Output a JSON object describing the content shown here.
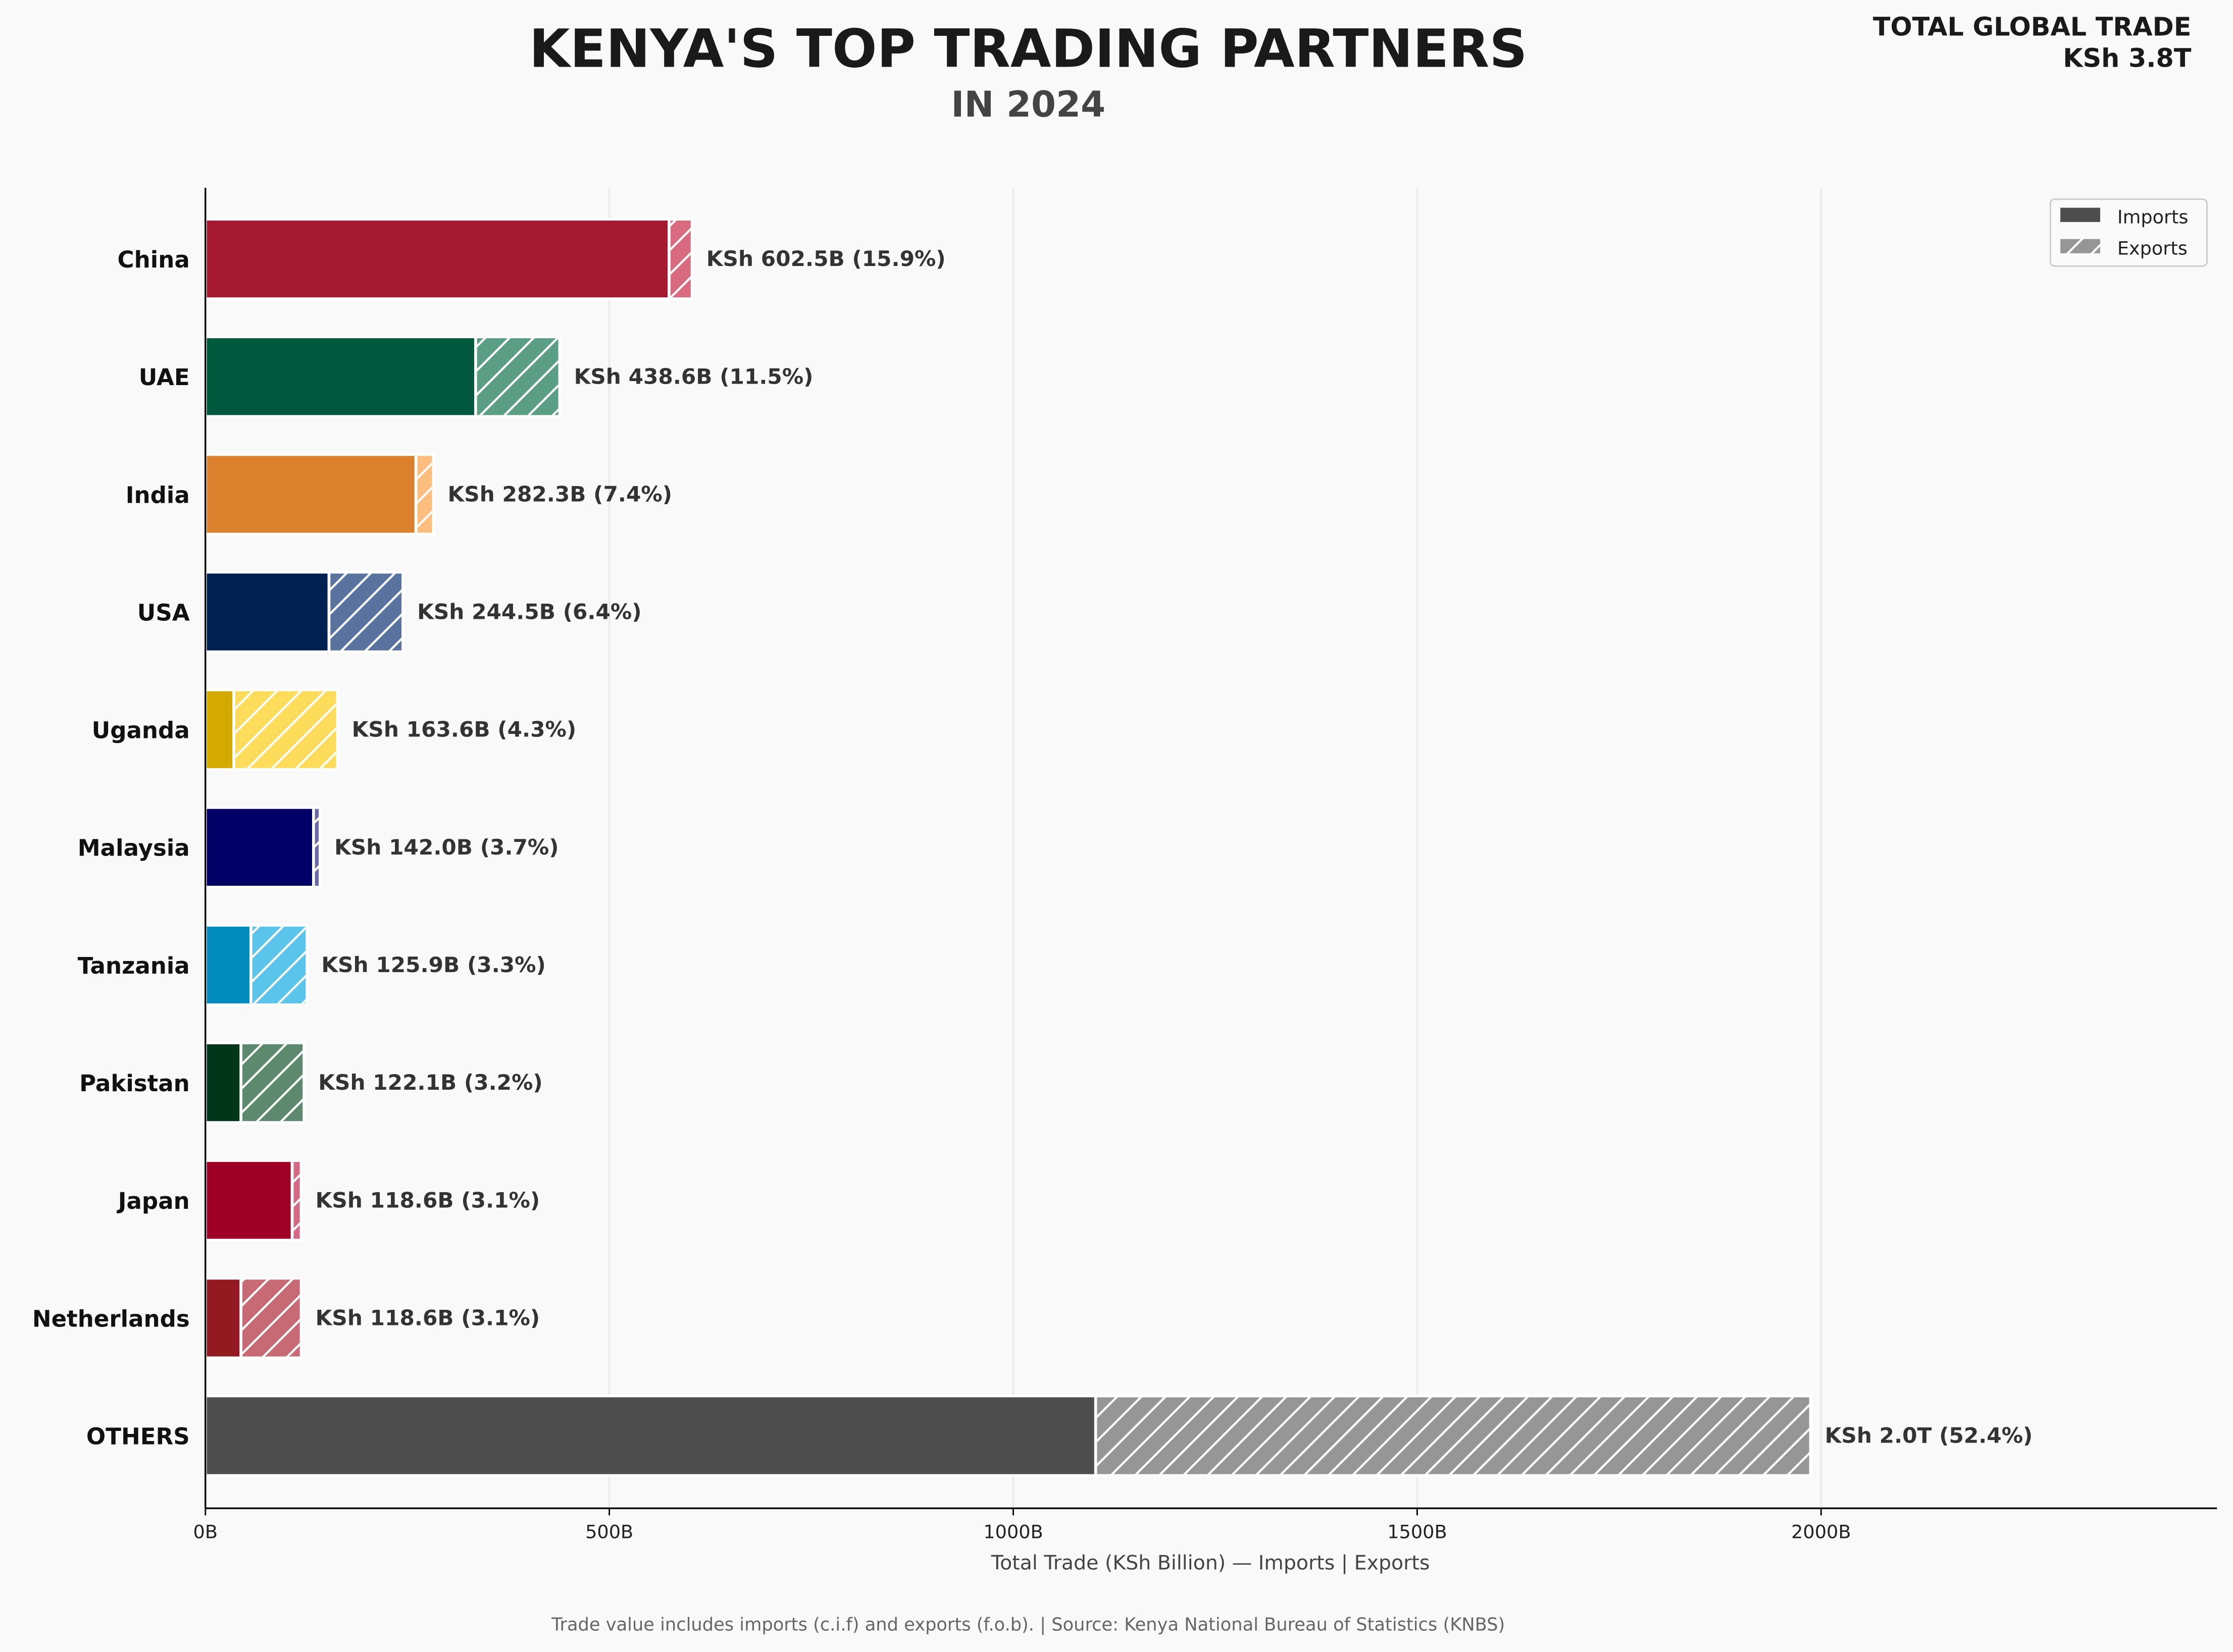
{
  "header": {
    "title": "KENYA'S TOP TRADING PARTNERS",
    "subtitle": "IN 2024",
    "total_label": "TOTAL GLOBAL TRADE",
    "total_value": "KSh 3.8T"
  },
  "footer": "Trade value includes imports (c.i.f) and exports (f.o.b).  |  Source: Kenya National Bureau of Statistics (KNBS)",
  "chart_data": {
    "type": "bar",
    "orientation": "horizontal",
    "stacked": true,
    "xlabel": "Total Trade (KSh Billion)  —  Imports | Exports",
    "xlim": [
      0,
      2490
    ],
    "xticks": [
      0,
      500,
      1000,
      1500,
      2000
    ],
    "xtick_labels": [
      "0B",
      "500B",
      "1000B",
      "1500B",
      "2000B"
    ],
    "grid": "vertical",
    "legend": {
      "position": "top-right",
      "entries": [
        "Imports",
        "Exports"
      ]
    },
    "categories": [
      "China",
      "UAE",
      "India",
      "USA",
      "Uganda",
      "Malaysia",
      "Tanzania",
      "Pakistan",
      "Japan",
      "Netherlands",
      "OTHERS"
    ],
    "series": [
      {
        "name": "Imports",
        "values": [
          574,
          334.5,
          260.6,
          153,
          35.2,
          133.8,
          56.3,
          44,
          107.4,
          44,
          1102
        ]
      },
      {
        "name": "Exports",
        "values": [
          28.5,
          104.1,
          21.7,
          91.5,
          128.4,
          8.2,
          69.6,
          78.1,
          11.2,
          74.6,
          885
        ]
      }
    ],
    "data_labels": [
      "KSh 602.5B  (15.9%)",
      "KSh 438.6B  (11.5%)",
      "KSh 282.3B  (7.4%)",
      "KSh 244.5B  (6.4%)",
      "KSh 163.6B  (4.3%)",
      "KSh 142.0B  (3.7%)",
      "KSh 125.9B  (3.3%)",
      "KSh 122.1B  (3.2%)",
      "KSh 118.6B  (3.1%)",
      "KSh 118.6B  (3.1%)",
      "KSh 2.0T  (52.4%)"
    ],
    "import_colors": [
      "#a51931",
      "#00593c",
      "#db812e",
      "#002052",
      "#d4aa00",
      "#010066",
      "#008bbd",
      "#01361a",
      "#9e0026",
      "#921a20",
      "#4d4d4d"
    ],
    "export_colors": [
      "#d86b80",
      "#5a9e85",
      "#fdbd7c",
      "#5a739e",
      "#fcdc5a",
      "#6a6aaa",
      "#5bc4ea",
      "#5d8a6e",
      "#d26a86",
      "#c86a74",
      "#969696"
    ]
  }
}
